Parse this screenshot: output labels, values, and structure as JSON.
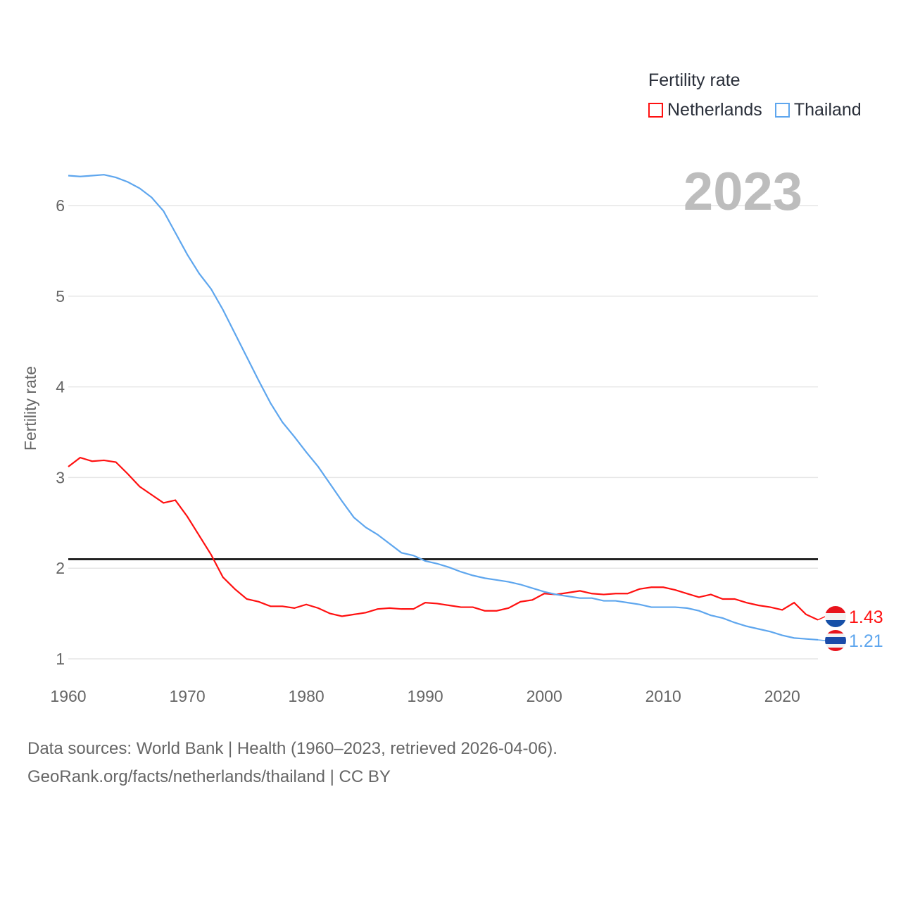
{
  "chart_data": {
    "type": "line",
    "title": "Fertility rate",
    "ylabel": "Fertility rate",
    "xlabel": "",
    "year_label": "2023",
    "xlim": [
      1960,
      2023
    ],
    "ylim": [
      1,
      6
    ],
    "x_ticks": [
      "1960",
      "1970",
      "1980",
      "1990",
      "2000",
      "2010",
      "2020"
    ],
    "y_ticks": [
      "1",
      "2",
      "3",
      "4",
      "5",
      "6"
    ],
    "grid": true,
    "legend_position": "top-right",
    "reference_line": 2.1,
    "x": [
      1960,
      1961,
      1962,
      1963,
      1964,
      1965,
      1966,
      1967,
      1968,
      1969,
      1970,
      1971,
      1972,
      1973,
      1974,
      1975,
      1976,
      1977,
      1978,
      1979,
      1980,
      1981,
      1982,
      1983,
      1984,
      1985,
      1986,
      1987,
      1988,
      1989,
      1990,
      1991,
      1992,
      1993,
      1994,
      1995,
      1996,
      1997,
      1998,
      1999,
      2000,
      2001,
      2002,
      2003,
      2004,
      2005,
      2006,
      2007,
      2008,
      2009,
      2010,
      2011,
      2012,
      2013,
      2014,
      2015,
      2016,
      2017,
      2018,
      2019,
      2020,
      2021,
      2022,
      2023
    ],
    "series": [
      {
        "name": "Netherlands",
        "color": "#ff1010",
        "end_label": "1.43",
        "values": [
          3.12,
          3.22,
          3.18,
          3.19,
          3.17,
          3.04,
          2.9,
          2.81,
          2.72,
          2.75,
          2.57,
          2.36,
          2.15,
          1.9,
          1.77,
          1.66,
          1.63,
          1.58,
          1.58,
          1.56,
          1.6,
          1.56,
          1.5,
          1.47,
          1.49,
          1.51,
          1.55,
          1.56,
          1.55,
          1.55,
          1.62,
          1.61,
          1.59,
          1.57,
          1.57,
          1.53,
          1.53,
          1.56,
          1.63,
          1.65,
          1.72,
          1.71,
          1.73,
          1.75,
          1.72,
          1.71,
          1.72,
          1.72,
          1.77,
          1.79,
          1.79,
          1.76,
          1.72,
          1.68,
          1.71,
          1.66,
          1.66,
          1.62,
          1.59,
          1.57,
          1.54,
          1.62,
          1.49,
          1.43
        ]
      },
      {
        "name": "Thailand",
        "color": "#5ea6ee",
        "end_label": "1.21",
        "values": [
          6.33,
          6.32,
          6.33,
          6.34,
          6.31,
          6.26,
          6.19,
          6.09,
          5.94,
          5.7,
          5.46,
          5.25,
          5.08,
          4.85,
          4.59,
          4.33,
          4.07,
          3.82,
          3.61,
          3.45,
          3.28,
          3.12,
          2.93,
          2.74,
          2.56,
          2.45,
          2.37,
          2.27,
          2.17,
          2.14,
          2.08,
          2.05,
          2.01,
          1.96,
          1.92,
          1.89,
          1.87,
          1.85,
          1.82,
          1.78,
          1.74,
          1.71,
          1.69,
          1.67,
          1.67,
          1.64,
          1.64,
          1.62,
          1.6,
          1.57,
          1.57,
          1.57,
          1.56,
          1.53,
          1.48,
          1.45,
          1.4,
          1.36,
          1.33,
          1.3,
          1.26,
          1.23,
          1.22,
          1.21
        ]
      }
    ]
  },
  "footer": {
    "line1": "Data sources: World Bank | Health (1960–2023, retrieved 2026-04-06).",
    "line2": "GeoRank.org/facts/netherlands/thailand | CC BY"
  }
}
